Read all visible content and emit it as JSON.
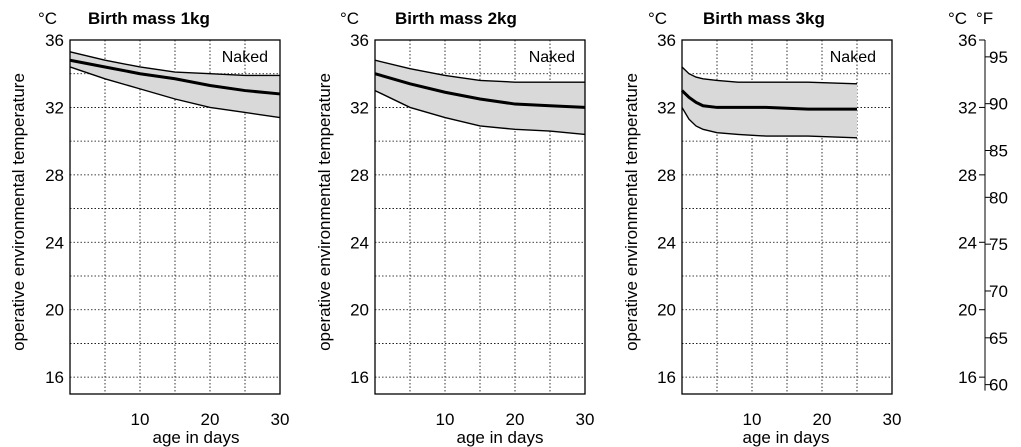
{
  "chart_data": [
    {
      "type": "area",
      "title": "Birth mass 1kg",
      "annotation": "Naked",
      "xlabel": "age in days",
      "ylabel": "operative environmental temperature",
      "y_unit": "°C",
      "xlim": [
        0,
        30
      ],
      "ylim": [
        15,
        36
      ],
      "xticks": [
        "10",
        "20",
        "30"
      ],
      "yticks": [
        "36",
        "32",
        "28",
        "24",
        "20",
        "16"
      ],
      "grid": true,
      "series": [
        {
          "role": "upper",
          "x": [
            0,
            5,
            10,
            15,
            20,
            25,
            30
          ],
          "y": [
            35.3,
            34.8,
            34.4,
            34.1,
            34.0,
            33.9,
            33.9
          ]
        },
        {
          "role": "middle",
          "x": [
            0,
            5,
            10,
            15,
            20,
            25,
            30
          ],
          "y": [
            34.8,
            34.4,
            34.0,
            33.7,
            33.3,
            33.0,
            32.8
          ]
        },
        {
          "role": "lower",
          "x": [
            0,
            5,
            10,
            15,
            20,
            25,
            30
          ],
          "y": [
            34.4,
            33.7,
            33.1,
            32.5,
            32.0,
            31.7,
            31.4
          ]
        }
      ]
    },
    {
      "type": "area",
      "title": "Birth mass 2kg",
      "annotation": "Naked",
      "xlabel": "age in days",
      "ylabel": "operative environmental temperature",
      "y_unit": "°C",
      "xlim": [
        0,
        30
      ],
      "ylim": [
        15,
        36
      ],
      "xticks": [
        "10",
        "20",
        "30"
      ],
      "yticks": [
        "36",
        "32",
        "28",
        "24",
        "20",
        "16"
      ],
      "grid": true,
      "series": [
        {
          "role": "upper",
          "x": [
            0,
            5,
            10,
            15,
            20,
            25,
            30
          ],
          "y": [
            34.8,
            34.3,
            33.9,
            33.6,
            33.5,
            33.5,
            33.5
          ]
        },
        {
          "role": "middle",
          "x": [
            0,
            5,
            10,
            15,
            20,
            25,
            30
          ],
          "y": [
            34.0,
            33.4,
            32.9,
            32.5,
            32.2,
            32.1,
            32.0
          ]
        },
        {
          "role": "lower",
          "x": [
            0,
            5,
            10,
            15,
            20,
            25,
            30
          ],
          "y": [
            33.0,
            32.0,
            31.4,
            30.9,
            30.7,
            30.6,
            30.4
          ]
        }
      ]
    },
    {
      "type": "area",
      "title": "Birth mass 3kg",
      "annotation": "Naked",
      "xlabel": "age in days",
      "ylabel": "operative environmental temperature",
      "y_unit": "°C",
      "xlim": [
        0,
        30
      ],
      "ylim": [
        15,
        36
      ],
      "xticks": [
        "10",
        "20",
        "30"
      ],
      "yticks": [
        "36",
        "32",
        "28",
        "24",
        "20",
        "16"
      ],
      "grid": true,
      "series": [
        {
          "role": "upper",
          "x": [
            0,
            1,
            2,
            3,
            5,
            8,
            12,
            18,
            25
          ],
          "y": [
            34.4,
            34.0,
            33.8,
            33.7,
            33.6,
            33.5,
            33.5,
            33.5,
            33.4
          ]
        },
        {
          "role": "middle",
          "x": [
            0,
            1,
            2,
            3,
            5,
            8,
            12,
            18,
            25
          ],
          "y": [
            33.0,
            32.6,
            32.3,
            32.1,
            32.0,
            32.0,
            32.0,
            31.9,
            31.9
          ]
        },
        {
          "role": "lower",
          "x": [
            0,
            1,
            2,
            3,
            5,
            8,
            12,
            18,
            25
          ],
          "y": [
            32.0,
            31.3,
            30.9,
            30.7,
            30.5,
            30.4,
            30.3,
            30.3,
            30.2
          ]
        }
      ]
    }
  ],
  "scale": {
    "celsius_unit": "°C",
    "fahrenheit_unit": "°F",
    "celsius_ticks": [
      "36",
      "32",
      "28",
      "24",
      "20",
      "16"
    ],
    "fahrenheit_ticks": [
      "95",
      "90",
      "85",
      "80",
      "75",
      "70",
      "65",
      "60"
    ]
  }
}
